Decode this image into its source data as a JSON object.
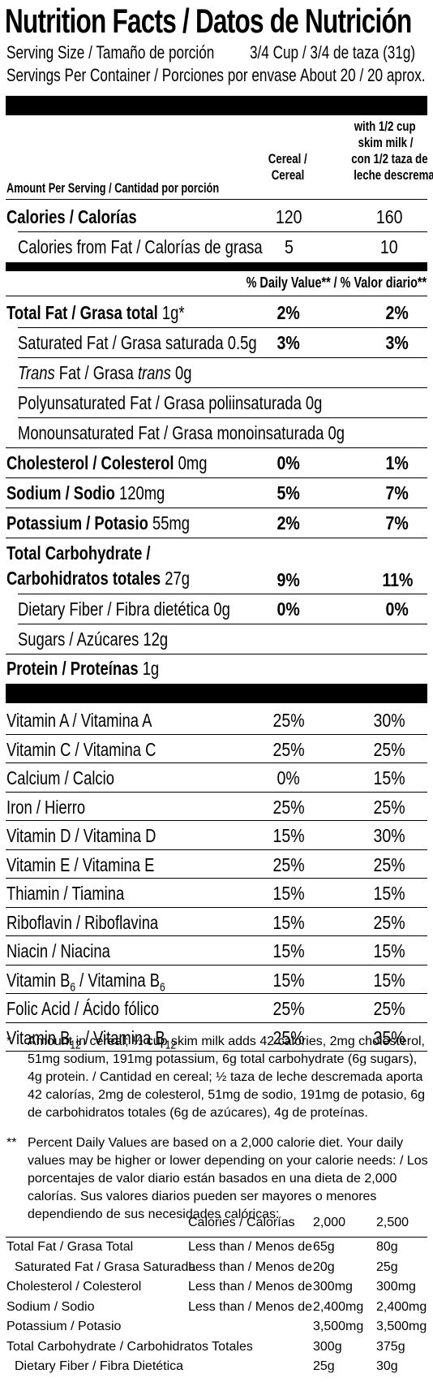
{
  "header": {
    "title": "Nutrition Facts / Datos de Nutrición",
    "serving_size_label": "Serving Size / Tamaño de porción",
    "serving_size_value": "3/4 Cup / 3/4 de taza (31g)",
    "servings_label": "Servings Per Container / Porciones por envase",
    "servings_value": "About 20 / 20 aprox."
  },
  "columns": {
    "amount_label": "Amount Per Serving / Cantidad por porción",
    "cereal_line1": "Cereal /",
    "cereal_line2": "Cereal",
    "milk_line1": "with 1/2 cup",
    "milk_line2": "skim milk /",
    "milk_line3": "con 1/2 taza de",
    "milk_line4": "leche descremada"
  },
  "calories": {
    "label": "Calories / Calorías",
    "cereal": "120",
    "milk": "160",
    "fat_label": "Calories from Fat / Calorías de grasa",
    "fat_cereal": "5",
    "fat_milk": "10"
  },
  "daily_value_header": "% Daily Value** / % Valor diario**",
  "nutrients": {
    "total_fat": {
      "name": "Total Fat / Grasa total",
      "amount": "1g*",
      "cereal": "2%",
      "milk": "2%"
    },
    "sat_fat": {
      "name": "Saturated Fat / Grasa saturada 0.5g",
      "cereal": "3%",
      "milk": "3%"
    },
    "trans_fat": {
      "name_a": "Trans",
      "name_b": " Fat / Grasa ",
      "name_c": "trans",
      "name_d": " 0g"
    },
    "poly_fat": {
      "name": "Polyunsaturated Fat / Grasa poliinsaturada 0g"
    },
    "mono_fat": {
      "name": "Monounsaturated Fat / Grasa monoinsaturada 0g"
    },
    "cholesterol": {
      "name": "Cholesterol / Colesterol",
      "amount": "0mg",
      "cereal": "0%",
      "milk": "1%"
    },
    "sodium": {
      "name": "Sodium / Sodio",
      "amount": "120mg",
      "cereal": "5%",
      "milk": "7%"
    },
    "potassium": {
      "name": "Potassium / Potasio",
      "amount": "55mg",
      "cereal": "2%",
      "milk": "7%"
    },
    "carb": {
      "name_line1": "Total Carbohydrate /",
      "name_line2": "Carbohidratos totales",
      "amount": "27g",
      "cereal": "9%",
      "milk": "11%"
    },
    "fiber": {
      "name": "Dietary Fiber / Fibra dietética 0g",
      "cereal": "0%",
      "milk": "0%"
    },
    "sugars": {
      "name": "Sugars / Azúcares 12g"
    },
    "protein": {
      "name": "Protein / Proteínas",
      "amount": "1g"
    }
  },
  "vitamins": [
    {
      "name": "Vitamin A / Vitamina A",
      "cereal": "25%",
      "milk": "30%"
    },
    {
      "name": "Vitamin C / Vitamina C",
      "cereal": "25%",
      "milk": "25%"
    },
    {
      "name": "Calcium / Calcio",
      "cereal": "0%",
      "milk": "15%"
    },
    {
      "name": "Iron / Hierro",
      "cereal": "25%",
      "milk": "25%"
    },
    {
      "name": "Vitamin D / Vitamina D",
      "cereal": "15%",
      "milk": "30%"
    },
    {
      "name": "Vitamin E / Vitamina E",
      "cereal": "25%",
      "milk": "25%"
    },
    {
      "name": "Thiamin / Tiamina",
      "cereal": "15%",
      "milk": "15%"
    },
    {
      "name": "Riboflavin / Riboflavina",
      "cereal": "15%",
      "milk": "25%"
    },
    {
      "name": "Niacin / Niacina",
      "cereal": "15%",
      "milk": "15%"
    },
    {
      "name_a": "Vitamin B",
      "sub_a": "6",
      "name_b": " / Vitamina B",
      "sub_b": "6",
      "cereal": "15%",
      "milk": "15%"
    },
    {
      "name": "Folic Acid / Ácido fólico",
      "cereal": "25%",
      "milk": "25%"
    },
    {
      "name_a": "Vitamin B",
      "sub_a": "12",
      "name_b": " / Vitamina B",
      "sub_b": "12",
      "cereal": "25%",
      "milk": "35%"
    }
  ],
  "footnotes": {
    "mark1": "*",
    "text1": "Amount in cereal; ½ cup skim milk adds 42 calories, 2mg cholesterol, 51mg sodium, 191mg potassium, 6g total carbohydrate (6g sugars), 4g protein. / Cantidad en cereal; ½ taza de leche descremada aporta 42 calorías, 2mg de colesterol, 51mg de sodio, 191mg de potasio, 6g de carbohidratos totales (6g de azúcares), 4g de proteínas.",
    "mark2": "**",
    "text2": "Percent Daily Values are based on a 2,000 calorie diet. Your daily values may be higher or lower depending on your calorie needs: / Los porcentajes de valor diario están basados en una dieta de 2,000 calorías. Sus valores diarios pueden ser mayores o menores dependiendo de sus necesidades calóricas:"
  },
  "dv_table": {
    "header_calories": "Calories / Calorías",
    "header_2000": "2,000",
    "header_2500": "2,500",
    "rows": [
      {
        "name": "Total Fat / Grasa Total",
        "qual": "Less than / Menos de",
        "v2000": "65g",
        "v2500": "80g"
      },
      {
        "name": "Saturated Fat / Grasa Saturada",
        "qual": "Less than / Menos de",
        "v2000": "20g",
        "v2500": "25g",
        "indent": true
      },
      {
        "name": "Cholesterol / Colesterol",
        "qual": "Less than / Menos de",
        "v2000": "300mg",
        "v2500": "300mg"
      },
      {
        "name": "Sodium / Sodio",
        "qual": "Less than / Menos de",
        "v2000": "2,400mg",
        "v2500": "2,400mg"
      },
      {
        "name": "Potassium / Potasio",
        "qual": "",
        "v2000": "3,500mg",
        "v2500": "3,500mg"
      },
      {
        "name": "Total Carbohydrate / Carbohidratos Totales",
        "qual": "",
        "v2000": "300g",
        "v2500": "375g"
      },
      {
        "name": "Dietary Fiber / Fibra Dietética",
        "qual": "",
        "v2000": "25g",
        "v2500": "30g",
        "indent": true
      }
    ]
  }
}
